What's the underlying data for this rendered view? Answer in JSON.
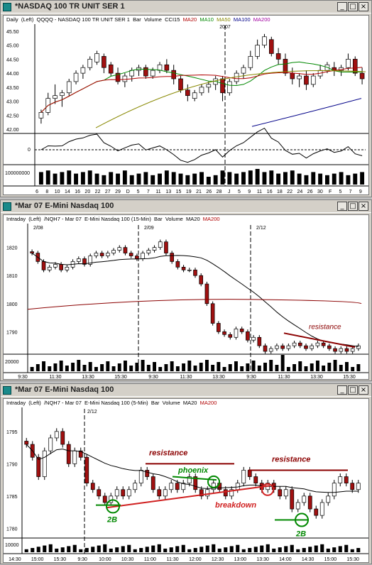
{
  "windows": [
    {
      "title": "*NASDAQ 100 TR UNIT SER 1",
      "header": [
        {
          "t": "Daily  (Left)",
          "c": "#000"
        },
        {
          "t": "QQQQ - NASDAQ 100 TR UNIT SER 1  Bar  Volume  CCI15",
          "c": "#000"
        },
        {
          "t": "MA20",
          "c": "#b00000"
        },
        {
          "t": "MA10",
          "c": "#008800"
        },
        {
          "t": "MA50",
          "c": "#888800"
        },
        {
          "t": "MA100",
          "c": "#000088"
        },
        {
          "t": "MA200",
          "c": "#a000a0"
        }
      ],
      "marker": "2007",
      "y_ticks": [
        "45.50",
        "45.00",
        "44.50",
        "44.00",
        "43.50",
        "43.00",
        "42.50",
        "42.00"
      ],
      "cci_ticks": [
        "0"
      ],
      "vol_tick": "100000000",
      "x_ticks": [
        "6",
        "8",
        "10",
        "14",
        "16",
        "20",
        "22",
        "27",
        "29",
        "D",
        "5",
        "7",
        "11",
        "13",
        "15",
        "19",
        "21",
        "26",
        "28",
        "J",
        "5",
        "9",
        "11",
        "16",
        "18",
        "22",
        "24",
        "26",
        "30",
        "F",
        "5",
        "7",
        "9"
      ]
    },
    {
      "title": "*Mar 07  E-Mini Nasdaq 100",
      "header": [
        {
          "t": "Intraday  (Left)",
          "c": "#000"
        },
        {
          "t": "/NQH7 - Mar 07  E-Mini Nasdaq 100 (15-Min)  Bar  Volume  MA20",
          "c": "#000"
        },
        {
          "t": "MA200",
          "c": "#b00000"
        }
      ],
      "dates": [
        "2/08",
        "2/09",
        "2/12"
      ],
      "y_ticks": [
        "1820",
        "1810",
        "1800",
        "1790"
      ],
      "vol_tick": "20000",
      "annotation": "resistance",
      "x_ticks": [
        "9:30",
        "11:30",
        "13:30",
        "15:30",
        "9:30",
        "11:30",
        "13:30",
        "9:30",
        "11:30",
        "13:30",
        "15:30"
      ]
    },
    {
      "title": "*Mar 07  E-Mini Nasdaq 100",
      "header": [
        {
          "t": "Intraday  (Left)",
          "c": "#000"
        },
        {
          "t": "/NQH7 - Mar 07  E-Mini Nasdaq 100 (5-Min)  Bar  Volume  MA20",
          "c": "#000"
        },
        {
          "t": "MA200",
          "c": "#b00000"
        }
      ],
      "dates": [
        "2/12"
      ],
      "y_ticks": [
        "1795",
        "1790",
        "1785",
        "1780"
      ],
      "vol_tick": "10000",
      "annotations": {
        "resistance1": "resistance",
        "resistance2": "resistance",
        "phoenix": "phoenix",
        "breakdown": "breakdown",
        "twob1": "2B",
        "twob2": "2B"
      },
      "x_ticks": [
        "14:30",
        "15:00",
        "15:30",
        "9:30",
        "10:00",
        "10:30",
        "11:00",
        "11:30",
        "12:00",
        "12:30",
        "13:00",
        "13:30",
        "14:00",
        "14:30",
        "15:00",
        "15:30"
      ]
    }
  ],
  "chart_data": [
    {
      "type": "bar",
      "title": "QQQQ - NASDAQ 100 TR UNIT SER 1",
      "ylim": [
        41.9,
        45.7
      ],
      "ohlc": [
        [
          42.4,
          42.7,
          42.2,
          42.6
        ],
        [
          42.6,
          43.3,
          42.5,
          43.1
        ],
        [
          43.1,
          43.6,
          42.9,
          43.2
        ],
        [
          43.2,
          43.4,
          42.8,
          43.3
        ],
        [
          43.3,
          43.8,
          43.2,
          43.7
        ],
        [
          43.7,
          44.1,
          43.6,
          44.0
        ],
        [
          44.0,
          44.3,
          43.8,
          44.2
        ],
        [
          44.2,
          44.6,
          44.1,
          44.5
        ],
        [
          44.4,
          44.8,
          44.3,
          44.7
        ],
        [
          44.6,
          44.7,
          44.0,
          44.2
        ],
        [
          44.3,
          44.4,
          43.9,
          44.0
        ],
        [
          44.0,
          44.2,
          43.6,
          43.7
        ],
        [
          43.7,
          44.0,
          43.5,
          43.9
        ],
        [
          43.9,
          44.2,
          43.7,
          44.1
        ],
        [
          44.1,
          44.3,
          43.9,
          44.2
        ],
        [
          44.2,
          44.3,
          43.8,
          43.9
        ],
        [
          43.9,
          44.2,
          43.8,
          44.1
        ],
        [
          44.1,
          44.4,
          44.0,
          44.3
        ],
        [
          44.3,
          44.5,
          44.0,
          44.1
        ],
        [
          44.1,
          44.3,
          43.6,
          43.8
        ],
        [
          43.8,
          43.9,
          43.3,
          43.4
        ],
        [
          43.4,
          43.6,
          43.0,
          43.2
        ],
        [
          43.1,
          43.4,
          43.0,
          43.3
        ],
        [
          43.3,
          43.6,
          43.2,
          43.5
        ],
        [
          43.5,
          43.7,
          43.3,
          43.6
        ],
        [
          43.6,
          43.9,
          43.4,
          43.8
        ],
        [
          43.8,
          43.9,
          43.0,
          43.3
        ],
        [
          43.3,
          43.8,
          43.2,
          43.7
        ],
        [
          43.7,
          44.1,
          43.6,
          44.0
        ],
        [
          44.0,
          44.3,
          43.8,
          44.2
        ],
        [
          44.2,
          44.8,
          44.1,
          44.6
        ],
        [
          44.6,
          45.2,
          44.5,
          45.0
        ],
        [
          45.0,
          45.4,
          44.9,
          45.3
        ],
        [
          45.2,
          45.3,
          44.6,
          44.7
        ],
        [
          44.7,
          44.9,
          44.3,
          44.5
        ],
        [
          44.5,
          44.7,
          43.9,
          44.0
        ],
        [
          44.0,
          44.2,
          43.6,
          43.8
        ],
        [
          43.8,
          44.0,
          43.5,
          43.9
        ],
        [
          43.9,
          44.1,
          43.4,
          43.6
        ],
        [
          43.6,
          44.0,
          43.5,
          43.9
        ],
        [
          43.9,
          44.3,
          43.8,
          44.1
        ],
        [
          44.1,
          44.4,
          44.0,
          44.3
        ],
        [
          44.2,
          44.4,
          43.9,
          44.1
        ],
        [
          44.1,
          44.3,
          43.9,
          44.2
        ],
        [
          44.2,
          44.7,
          44.1,
          44.5
        ],
        [
          44.5,
          44.6,
          43.9,
          44.0
        ],
        [
          44.0,
          44.2,
          43.6,
          43.8
        ]
      ],
      "volume": [
        0.8,
        0.9,
        0.7,
        0.8,
        0.9,
        0.7,
        0.8,
        0.9,
        0.7,
        0.6,
        0.8,
        0.7,
        0.9,
        0.6,
        0.7,
        0.8,
        0.6,
        0.7,
        0.9,
        0.8,
        0.7,
        0.6,
        0.7,
        0.8,
        0.5,
        0.6,
        0.9,
        0.8,
        0.7,
        0.8,
        0.9,
        1.0,
        0.8,
        0.9,
        0.7,
        0.8,
        0.9,
        0.7,
        0.6,
        0.8,
        0.7,
        0.6,
        0.7,
        0.8,
        0.6,
        0.7,
        0.8
      ]
    },
    {
      "type": "bar",
      "title": "/NQH7 - Mar 07  E-Mini Nasdaq 100 (15-Min)",
      "ylim": [
        1782,
        1828
      ],
      "close": [
        1818,
        1815,
        1812,
        1813,
        1814,
        1812,
        1813,
        1815,
        1816,
        1814,
        1817,
        1818,
        1817,
        1818,
        1819,
        1820,
        1818,
        1817,
        1816,
        1818,
        1819,
        1820,
        1822,
        1818,
        1815,
        1813,
        1812,
        1812,
        1810,
        1807,
        1800,
        1793,
        1790,
        1789,
        1788,
        1791,
        1790,
        1787,
        1788,
        1785,
        1783,
        1784,
        1785,
        1784,
        1785,
        1786,
        1785,
        1784,
        1785,
        1786,
        1785,
        1784,
        1783,
        1784,
        1783,
        1784,
        1785
      ],
      "ma20_end": 1785,
      "ma200_level": 1800
    },
    {
      "type": "bar",
      "title": "/NQH7 - Mar 07  E-Mini Nasdaq 100 (5-Min)",
      "ylim": [
        1778.5,
        1798.5
      ],
      "close": [
        1793,
        1791,
        1788,
        1792,
        1794,
        1795,
        1793,
        1790,
        1792,
        1791,
        1787,
        1786,
        1785,
        1784,
        1785,
        1786,
        1785,
        1786,
        1787,
        1789,
        1788,
        1786,
        1785,
        1786,
        1787,
        1786,
        1787,
        1788,
        1786,
        1785,
        1786,
        1787,
        1786,
        1785,
        1786,
        1787,
        1789,
        1788,
        1787,
        1786,
        1787,
        1786,
        1785,
        1786,
        1783,
        1784,
        1785,
        1783,
        1782,
        1784,
        1785,
        1787,
        1788,
        1787,
        1786,
        1787
      ]
    }
  ]
}
